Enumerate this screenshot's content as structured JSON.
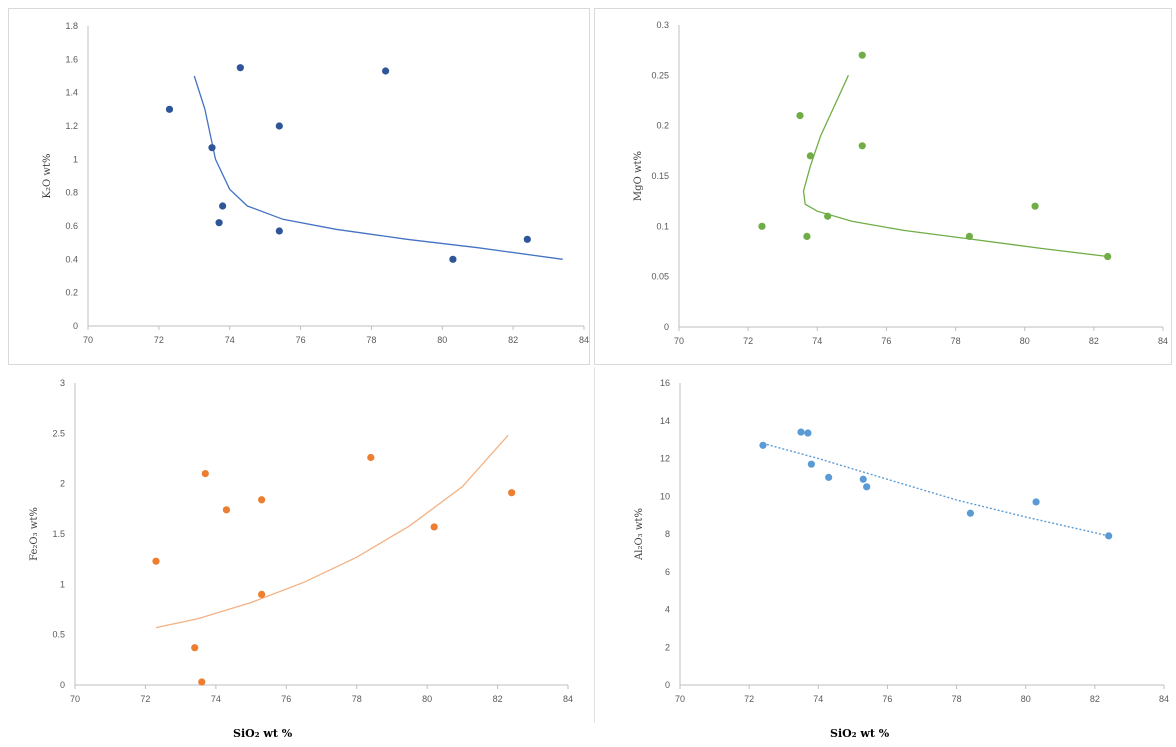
{
  "footer": {
    "left_xlabel": "SiO₂  wt %",
    "right_xlabel": "SiO₂  wt %"
  },
  "chart_data": [
    {
      "type": "scatter",
      "title": "",
      "xlabel": "",
      "ylabel": "K₂O wt%",
      "xlim": [
        70,
        84
      ],
      "ylim": [
        0,
        1.8
      ],
      "xticks": [
        70,
        72,
        74,
        76,
        78,
        80,
        82,
        84
      ],
      "yticks": [
        "0",
        "0.2",
        "0.4",
        "0.6",
        "0.8",
        "1",
        "1.2",
        "1.4",
        "1.6",
        "1.8"
      ],
      "color": "#2e5597",
      "points": [
        [
          72.3,
          1.3
        ],
        [
          73.5,
          1.07
        ],
        [
          73.7,
          0.62
        ],
        [
          73.8,
          0.72
        ],
        [
          74.3,
          1.55
        ],
        [
          75.4,
          1.2
        ],
        [
          75.4,
          0.57
        ],
        [
          78.4,
          1.53
        ],
        [
          80.3,
          0.4
        ],
        [
          82.4,
          0.52
        ]
      ],
      "trendline": [
        [
          73.0,
          1.5
        ],
        [
          73.3,
          1.3
        ],
        [
          73.6,
          1.0
        ],
        [
          74.0,
          0.82
        ],
        [
          74.5,
          0.72
        ],
        [
          75.5,
          0.64
        ],
        [
          77,
          0.58
        ],
        [
          79,
          0.52
        ],
        [
          81,
          0.47
        ],
        [
          83.4,
          0.4
        ]
      ]
    },
    {
      "type": "scatter",
      "title": "",
      "xlabel": "",
      "ylabel": "MgO wt%",
      "xlim": [
        70,
        84
      ],
      "ylim": [
        0,
        0.3
      ],
      "xticks": [
        70,
        72,
        74,
        76,
        78,
        80,
        82,
        84
      ],
      "yticks": [
        "0",
        "0.05",
        "0.1",
        "0.15",
        "0.2",
        "0.25",
        "0.3"
      ],
      "color": "#70ad47",
      "points": [
        [
          72.4,
          0.1
        ],
        [
          73.5,
          0.21
        ],
        [
          73.7,
          0.09
        ],
        [
          73.8,
          0.17
        ],
        [
          74.3,
          0.11
        ],
        [
          75.3,
          0.27
        ],
        [
          75.3,
          0.18
        ],
        [
          78.4,
          0.09
        ],
        [
          80.3,
          0.12
        ],
        [
          82.4,
          0.07
        ]
      ],
      "trendline": [
        [
          74.9,
          0.25
        ],
        [
          74.5,
          0.22
        ],
        [
          74.1,
          0.19
        ],
        [
          73.8,
          0.16
        ],
        [
          73.6,
          0.135
        ],
        [
          73.65,
          0.122
        ],
        [
          74.0,
          0.115
        ],
        [
          75,
          0.105
        ],
        [
          76.5,
          0.096
        ],
        [
          78.5,
          0.087
        ],
        [
          80.5,
          0.078
        ],
        [
          82.4,
          0.07
        ]
      ]
    },
    {
      "type": "scatter",
      "title": "",
      "xlabel": "",
      "ylabel": "Fe₂O₃ wt%",
      "xlim": [
        70,
        84
      ],
      "ylim": [
        0,
        3
      ],
      "xticks": [
        70,
        72,
        74,
        76,
        78,
        80,
        82,
        84
      ],
      "yticks": [
        "0",
        "0.5",
        "1",
        "1.5",
        "2",
        "2.5",
        "3"
      ],
      "color": "#ed7d31",
      "points": [
        [
          72.3,
          1.23
        ],
        [
          73.4,
          0.37
        ],
        [
          73.6,
          0.03
        ],
        [
          73.7,
          2.1
        ],
        [
          74.3,
          1.74
        ],
        [
          75.3,
          1.84
        ],
        [
          75.3,
          0.9
        ],
        [
          78.4,
          2.26
        ],
        [
          80.2,
          1.57
        ],
        [
          82.4,
          1.91
        ]
      ],
      "trendline": [
        [
          72.3,
          0.57
        ],
        [
          73.5,
          0.66
        ],
        [
          75,
          0.82
        ],
        [
          76.5,
          1.02
        ],
        [
          78,
          1.27
        ],
        [
          79.5,
          1.58
        ],
        [
          81,
          1.97
        ],
        [
          82.3,
          2.48
        ]
      ]
    },
    {
      "type": "scatter",
      "title": "",
      "xlabel": "",
      "ylabel": "Al₂O₃ wt%",
      "xlim": [
        70,
        84
      ],
      "ylim": [
        0,
        16
      ],
      "xticks": [
        70,
        72,
        74,
        76,
        78,
        80,
        82,
        84
      ],
      "yticks": [
        "0",
        "2",
        "4",
        "6",
        "8",
        "10",
        "12",
        "14",
        "16"
      ],
      "color": "#5b9bd5",
      "points": [
        [
          72.4,
          12.7
        ],
        [
          73.5,
          13.4
        ],
        [
          73.7,
          13.35
        ],
        [
          73.8,
          11.7
        ],
        [
          74.3,
          11.0
        ],
        [
          75.3,
          10.9
        ],
        [
          75.4,
          10.5
        ],
        [
          78.4,
          9.1
        ],
        [
          80.3,
          9.7
        ],
        [
          82.4,
          7.9
        ]
      ],
      "trendline": [
        [
          72.4,
          12.8
        ],
        [
          74,
          12.0
        ],
        [
          76,
          10.9
        ],
        [
          78,
          9.8
        ],
        [
          80,
          8.9
        ],
        [
          82.4,
          7.9
        ]
      ]
    }
  ]
}
